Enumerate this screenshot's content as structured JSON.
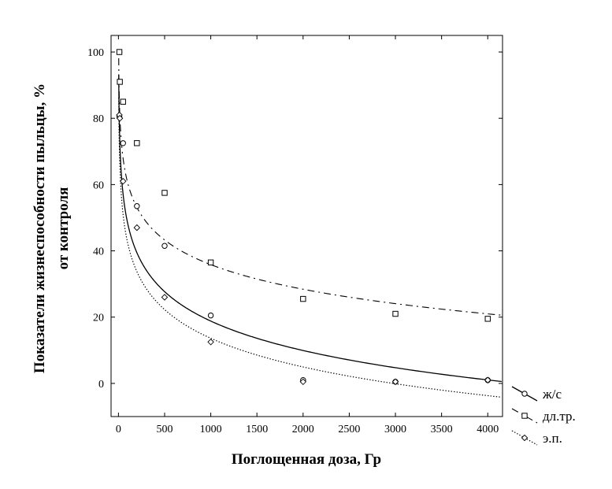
{
  "chart_data": {
    "type": "scatter",
    "title": "",
    "xlabel": "Поглощенная доза, Гр",
    "ylabel_lines": [
      "Показатели жизнеспособности пыльцы, %",
      "от контроля"
    ],
    "xlim": [
      -80,
      4160
    ],
    "ylim": [
      -10,
      105
    ],
    "x_ticks": [
      0,
      500,
      1000,
      1500,
      2000,
      2500,
      3000,
      3500,
      4000
    ],
    "y_ticks": [
      0,
      20,
      40,
      60,
      80,
      100
    ],
    "grid": false,
    "legend_position": "right-bottom, outside plot",
    "series": [
      {
        "name": "ж/с",
        "marker": "circle",
        "line": "solid",
        "points": [
          [
            10,
            100
          ],
          [
            10,
            80.5
          ],
          [
            50,
            72.5
          ],
          [
            200,
            53.5
          ],
          [
            500,
            41.5
          ],
          [
            1000,
            20.5
          ],
          [
            2000,
            1
          ],
          [
            3000,
            0.5
          ],
          [
            4000,
            1
          ]
        ]
      },
      {
        "name": "дл.тр.",
        "marker": "square",
        "line": "dash-dot",
        "points": [
          [
            10,
            100
          ],
          [
            15,
            91
          ],
          [
            50,
            85
          ],
          [
            200,
            72.5
          ],
          [
            500,
            57.5
          ],
          [
            1000,
            36.5
          ],
          [
            2000,
            25.5
          ],
          [
            3000,
            21
          ],
          [
            4000,
            19.5
          ]
        ]
      },
      {
        "name": "э.п.",
        "marker": "diamond",
        "line": "dotted",
        "points": [
          [
            10,
            81
          ],
          [
            15,
            80
          ],
          [
            50,
            61
          ],
          [
            200,
            47
          ],
          [
            500,
            26
          ],
          [
            1000,
            12.5
          ],
          [
            2000,
            0.5
          ],
          [
            3000,
            0.5
          ],
          [
            4000,
            1
          ]
        ]
      }
    ],
    "fits": [
      {
        "series": "ж/с",
        "model": "a + b*ln(x)",
        "a": 107.3,
        "b": -12.81
      },
      {
        "series": "дл.тр.",
        "model": "a + b*ln(x)",
        "a": 109.9,
        "b": -10.72
      },
      {
        "series": "э.п.",
        "model": "a + b*ln(x)",
        "a": 99.9,
        "b": -12.49
      }
    ]
  }
}
